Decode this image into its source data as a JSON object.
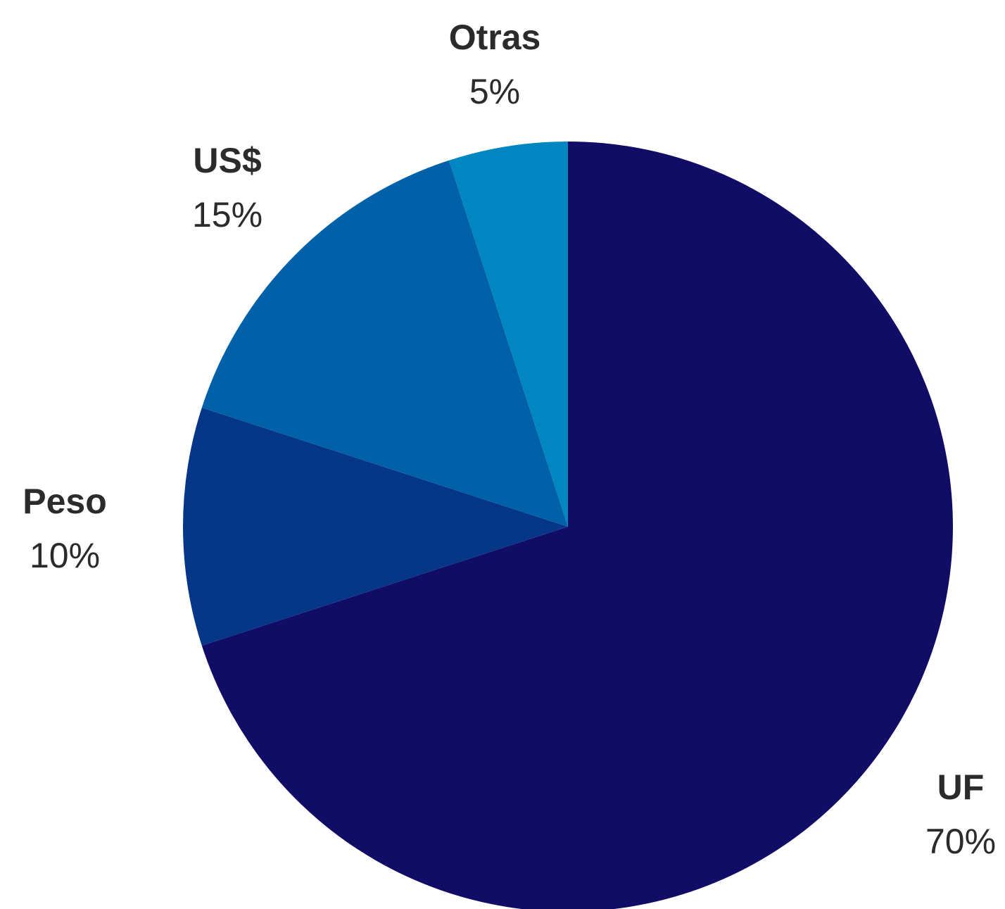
{
  "chart_data": {
    "type": "pie",
    "start_angle_deg": 0,
    "direction": "clockwise",
    "slices": [
      {
        "label": "UF",
        "value": 70,
        "display": "70%",
        "color": "#110d66"
      },
      {
        "label": "Peso",
        "value": 10,
        "display": "10%",
        "color": "#063687"
      },
      {
        "label": "US$",
        "value": 15,
        "display": "15%",
        "color": "#0060a8"
      },
      {
        "label": "Otras",
        "value": 5,
        "display": "5%",
        "color": "#0086c0"
      }
    ]
  }
}
